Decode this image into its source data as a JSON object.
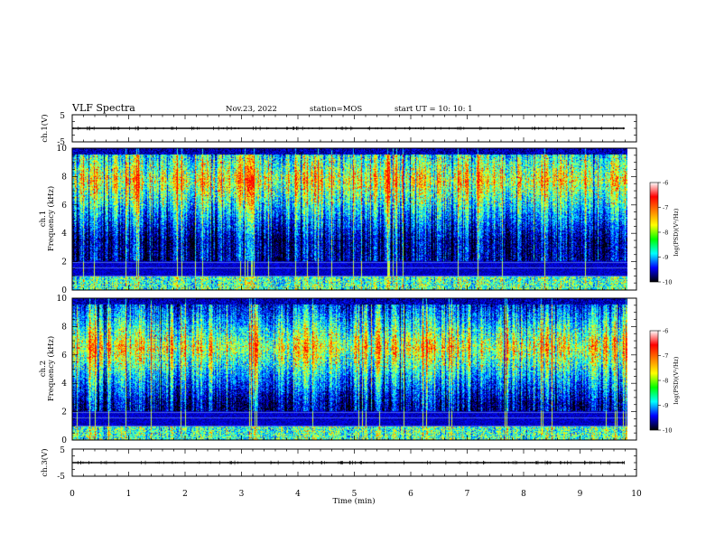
{
  "header": {
    "title": "VLF Spectra",
    "date": "Nov.23, 2022",
    "station": "station=MOS",
    "start": "start  UT =   10: 10: 1"
  },
  "colors": {
    "frame": "#000000",
    "background": "#ffffff",
    "colormap": [
      "#000000",
      "#00007f",
      "#0000ff",
      "#007fff",
      "#00ffff",
      "#7fff7f",
      "#ffff00",
      "#ff7f00",
      "#ff0000"
    ],
    "colorbar_stops": [
      "#ffffff",
      "#ff0000",
      "#ff8000",
      "#ffff00",
      "#00ff00",
      "#00ffff",
      "#0000ff",
      "#000000"
    ]
  },
  "chart_data": [
    {
      "type": "line",
      "panel": "ch1-waveform",
      "ylabel": "ch.1(V)",
      "xlabel": "",
      "xlim": [
        0,
        10
      ],
      "ylim": [
        -5,
        5
      ],
      "y_ticks": [
        "5",
        "-5"
      ],
      "series": [
        {
          "y_constant": 0
        }
      ]
    },
    {
      "type": "heatmap",
      "panel": "ch1-spectrogram",
      "ylabel": "ch.1\nFrequency (kHz)",
      "xlabel": "",
      "xlim": [
        0,
        10
      ],
      "ylim": [
        0,
        10
      ],
      "y_ticks": [
        "0",
        "2",
        "4",
        "6",
        "8",
        "10"
      ],
      "colorbar": {
        "label": "log(PSD)(V²/Hz)",
        "range": [
          -10,
          -6
        ],
        "ticks": [
          "-6",
          "-7",
          "-8",
          "-9",
          "-10"
        ]
      },
      "data_extent_x_max": 9.85,
      "intense_band_khz": [
        6,
        9.5
      ],
      "quiet_band_khz": [
        1,
        2
      ]
    },
    {
      "type": "heatmap",
      "panel": "ch2-spectrogram",
      "ylabel": "ch.2\nFrequency (kHz)",
      "xlabel": "",
      "xlim": [
        0,
        10
      ],
      "ylim": [
        0,
        10
      ],
      "y_ticks": [
        "0",
        "2",
        "4",
        "6",
        "8",
        "10"
      ],
      "colorbar": {
        "label": "log(PSD)(V²/Hz)",
        "range": [
          -10,
          -6
        ],
        "ticks": [
          "-6",
          "-7",
          "-8",
          "-9",
          "-10"
        ]
      },
      "data_extent_x_max": 9.85,
      "intense_band_khz": [
        5,
        8
      ],
      "quiet_band_khz": [
        1,
        2
      ]
    },
    {
      "type": "line",
      "panel": "ch3-waveform",
      "ylabel": "ch.3(V)",
      "xlabel": "Time  (min)",
      "xlim": [
        0,
        10
      ],
      "ylim": [
        -5,
        5
      ],
      "y_ticks": [
        "5",
        "-5"
      ],
      "x_ticks": [
        "0",
        "1",
        "2",
        "3",
        "4",
        "5",
        "6",
        "7",
        "8",
        "9",
        "10"
      ],
      "series": [
        {
          "y_constant": 0
        }
      ]
    }
  ]
}
